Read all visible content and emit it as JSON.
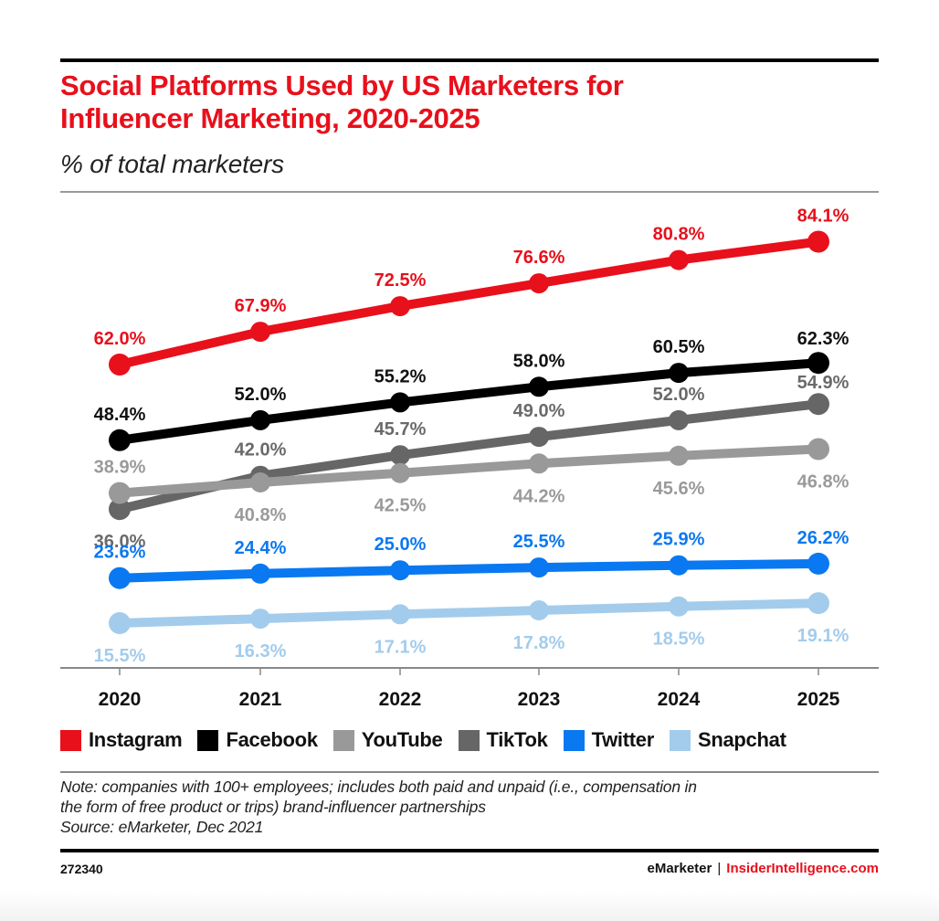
{
  "header": {
    "title_line1": "Social Platforms Used by US Marketers for",
    "title_line2": "Influencer Marketing, 2020-2025",
    "subtitle": "% of total marketers"
  },
  "chart_data": {
    "type": "line",
    "title": "Social Platforms Used by US Marketers for Influencer Marketing, 2020-2025",
    "subtitle": "% of total marketers",
    "xlabel": "",
    "ylabel": "% of total marketers",
    "x": [
      "2020",
      "2021",
      "2022",
      "2023",
      "2024",
      "2025"
    ],
    "grid": false,
    "legend_position": "bottom",
    "series": [
      {
        "name": "Instagram",
        "color": "#e8101b",
        "values": [
          62.0,
          67.9,
          72.5,
          76.6,
          80.8,
          84.1
        ],
        "labels": [
          "62.0%",
          "67.9%",
          "72.5%",
          "76.6%",
          "80.8%",
          "84.1%"
        ],
        "label_pos": "above"
      },
      {
        "name": "Facebook",
        "color": "#000000",
        "values": [
          48.4,
          52.0,
          55.2,
          58.0,
          60.5,
          62.3
        ],
        "labels": [
          "48.4%",
          "52.0%",
          "55.2%",
          "58.0%",
          "60.5%",
          "62.3%"
        ],
        "label_pos": "above"
      },
      {
        "name": "YouTube",
        "color": "#999999",
        "values": [
          38.9,
          40.8,
          42.5,
          44.2,
          45.6,
          46.8
        ],
        "labels": [
          "38.9%",
          "40.8%",
          "42.5%",
          "44.2%",
          "45.6%",
          "46.8%"
        ],
        "label_pos": "below_except_first"
      },
      {
        "name": "TikTok",
        "color": "#666666",
        "values": [
          36.0,
          42.0,
          45.7,
          49.0,
          52.0,
          54.9
        ],
        "labels": [
          "36.0%",
          "42.0%",
          "45.7%",
          "49.0%",
          "52.0%",
          "54.9%"
        ],
        "label_pos": "above_except_first"
      },
      {
        "name": "Twitter",
        "color": "#0a78f0",
        "values": [
          23.6,
          24.4,
          25.0,
          25.5,
          25.9,
          26.2
        ],
        "labels": [
          "23.6%",
          "24.4%",
          "25.0%",
          "25.5%",
          "25.9%",
          "26.2%"
        ],
        "label_pos": "above"
      },
      {
        "name": "Snapchat",
        "color": "#a3ccec",
        "values": [
          15.5,
          16.3,
          17.1,
          17.8,
          18.5,
          19.1
        ],
        "labels": [
          "15.5%",
          "16.3%",
          "17.1%",
          "17.8%",
          "18.5%",
          "19.1%"
        ],
        "label_pos": "below"
      }
    ]
  },
  "legend": [
    {
      "label": "Instagram",
      "color": "#e8101b"
    },
    {
      "label": "Facebook",
      "color": "#000000"
    },
    {
      "label": "YouTube",
      "color": "#999999"
    },
    {
      "label": "TikTok",
      "color": "#666666"
    },
    {
      "label": "Twitter",
      "color": "#0a78f0"
    },
    {
      "label": "Snapchat",
      "color": "#a3ccec"
    }
  ],
  "footnote": {
    "note_line1": "Note: companies with 100+ employees; includes both paid and unpaid (i.e., compensation in",
    "note_line2": "the form of free product or trips) brand-influencer partnerships",
    "source": "Source: eMarketer, Dec 2021"
  },
  "footer": {
    "chart_id": "272340",
    "brand": "eMarketer",
    "separator": "|",
    "site": "InsiderIntelligence.com"
  }
}
